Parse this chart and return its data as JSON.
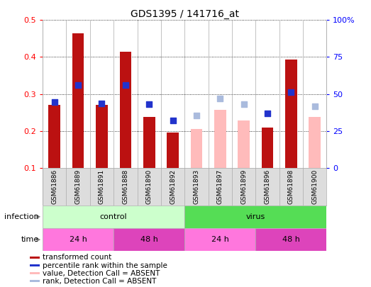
{
  "title": "GDS1395 / 141716_at",
  "samples": [
    "GSM61886",
    "GSM61889",
    "GSM61891",
    "GSM61888",
    "GSM61890",
    "GSM61892",
    "GSM61893",
    "GSM61897",
    "GSM61899",
    "GSM61896",
    "GSM61898",
    "GSM61900"
  ],
  "bar_values": [
    0.27,
    0.465,
    0.27,
    0.415,
    0.237,
    0.195,
    null,
    null,
    null,
    0.21,
    0.393,
    null
  ],
  "bar_absent_values": [
    null,
    null,
    null,
    null,
    null,
    null,
    0.205,
    0.258,
    0.228,
    null,
    null,
    0.237
  ],
  "rank_values": [
    0.278,
    0.325,
    0.275,
    0.325,
    0.272,
    0.228,
    null,
    null,
    null,
    0.248,
    0.305,
    null
  ],
  "rank_absent_values": [
    null,
    null,
    null,
    null,
    null,
    null,
    0.242,
    0.287,
    0.272,
    null,
    null,
    0.267
  ],
  "ylim": [
    0.1,
    0.5
  ],
  "ylim2": [
    0,
    100
  ],
  "yticks": [
    0.1,
    0.2,
    0.3,
    0.4,
    0.5
  ],
  "yticks2": [
    0,
    25,
    50,
    75,
    100
  ],
  "ytick_labels": [
    "0.1",
    "0.2",
    "0.3",
    "0.4",
    "0.5"
  ],
  "ytick_labels2": [
    "0",
    "25",
    "50",
    "75",
    "100%"
  ],
  "bar_color": "#bb1111",
  "bar_absent_color": "#ffbbbb",
  "rank_color": "#2233cc",
  "rank_absent_color": "#aabbdd",
  "infection_groups": [
    {
      "label": "control",
      "start": 0,
      "end": 6,
      "color": "#ccffcc"
    },
    {
      "label": "virus",
      "start": 6,
      "end": 12,
      "color": "#55dd55"
    }
  ],
  "time_groups": [
    {
      "label": "24 h",
      "start": 0,
      "end": 3,
      "color": "#ff77dd"
    },
    {
      "label": "48 h",
      "start": 3,
      "end": 6,
      "color": "#dd44bb"
    },
    {
      "label": "24 h",
      "start": 6,
      "end": 9,
      "color": "#ff77dd"
    },
    {
      "label": "48 h",
      "start": 9,
      "end": 12,
      "color": "#dd44bb"
    }
  ],
  "legend_items": [
    {
      "label": "transformed count",
      "color": "#bb1111"
    },
    {
      "label": "percentile rank within the sample",
      "color": "#2233cc"
    },
    {
      "label": "value, Detection Call = ABSENT",
      "color": "#ffbbbb"
    },
    {
      "label": "rank, Detection Call = ABSENT",
      "color": "#aabbdd"
    }
  ],
  "bar_width": 0.5,
  "rank_marker_size": 28
}
